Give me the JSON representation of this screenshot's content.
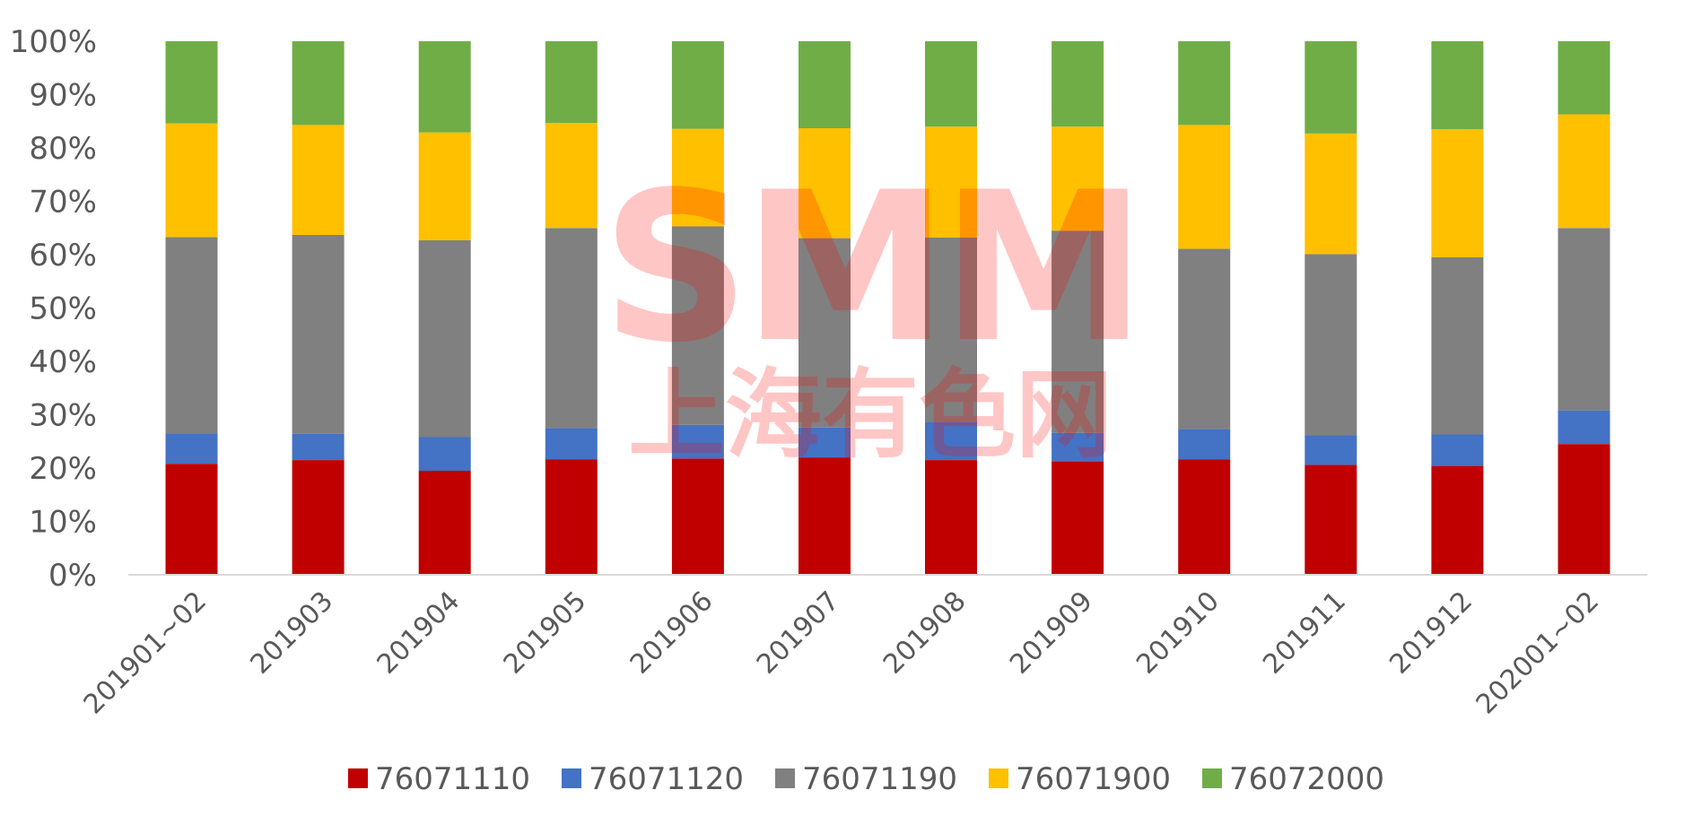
{
  "chart_data": {
    "type": "bar",
    "stacked": "percent",
    "categories": [
      "201901~02",
      "201903",
      "201904",
      "201905",
      "201906",
      "201907",
      "201908",
      "201909",
      "201910",
      "201911",
      "201912",
      "202001~02"
    ],
    "series": [
      {
        "name": "76071110",
        "color": "#c00000",
        "values": [
          20.8,
          21.5,
          19.5,
          21.6,
          21.8,
          22.0,
          21.5,
          21.3,
          21.6,
          20.6,
          20.4,
          24.5
        ]
      },
      {
        "name": "76071120",
        "color": "#4472c4",
        "values": [
          5.7,
          4.9,
          6.3,
          5.9,
          6.3,
          5.6,
          7.2,
          5.3,
          5.7,
          5.6,
          5.9,
          6.3
        ]
      },
      {
        "name": "76071190",
        "color": "#808080",
        "values": [
          36.8,
          37.3,
          36.9,
          37.5,
          37.2,
          35.5,
          34.5,
          37.9,
          33.8,
          33.9,
          33.2,
          34.2
        ]
      },
      {
        "name": "76071900",
        "color": "#ffc000",
        "values": [
          21.3,
          20.6,
          20.2,
          19.7,
          18.3,
          20.6,
          20.8,
          19.5,
          23.2,
          22.6,
          24.0,
          21.3
        ]
      },
      {
        "name": "76072000",
        "color": "#70ad47",
        "values": [
          15.4,
          15.7,
          17.1,
          15.3,
          16.4,
          16.3,
          16.0,
          16.0,
          15.7,
          17.3,
          16.5,
          13.7
        ]
      }
    ],
    "y_ticks": [
      "0%",
      "10%",
      "20%",
      "30%",
      "40%",
      "50%",
      "60%",
      "70%",
      "80%",
      "90%",
      "100%"
    ],
    "ylim": [
      0,
      100
    ],
    "legend_position": "bottom",
    "grid": false
  },
  "watermark": {
    "latin": "SMM",
    "chinese": "上海有色网",
    "color": "#ff0000"
  }
}
